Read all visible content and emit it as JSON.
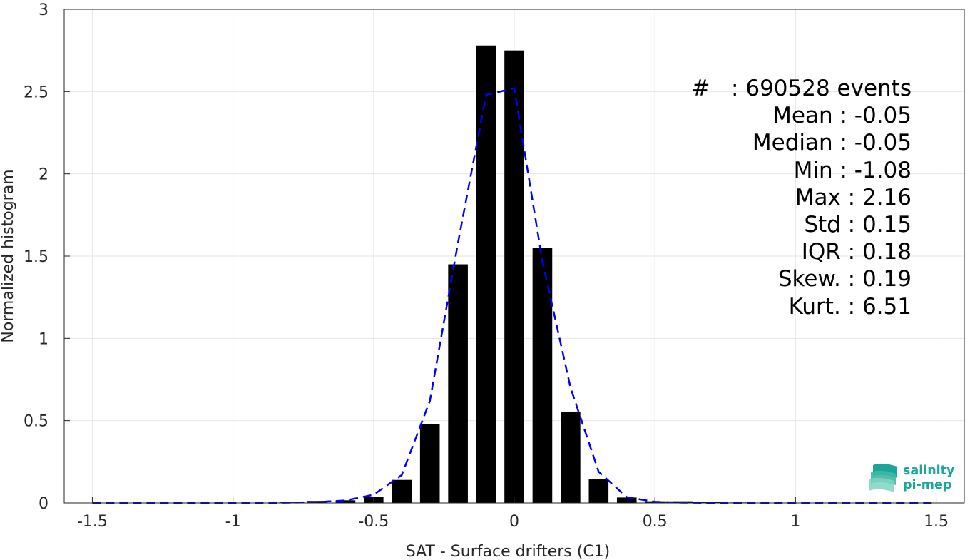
{
  "chart_data": {
    "type": "bar",
    "xlabel": "SAT - Surface drifters (C1)",
    "ylabel": "Normalized histogram",
    "xlim": [
      -1.6,
      1.6
    ],
    "ylim": [
      0,
      3
    ],
    "xticks": [
      -1.5,
      -1,
      -0.5,
      0,
      0.5,
      1,
      1.5
    ],
    "xtick_labels": [
      "-1.5",
      "-1",
      "-0.5",
      "0",
      "0.5",
      "1",
      "1.5"
    ],
    "yticks": [
      0,
      0.5,
      1,
      1.5,
      2,
      2.5,
      3
    ],
    "ytick_labels": [
      "0",
      "0.5",
      "1",
      "1.5",
      "2",
      "2.5",
      "3"
    ],
    "grid": true,
    "bar_color": "#000000",
    "bar_width": 0.07,
    "bars": {
      "x": [
        -1.5,
        -1.4,
        -1.3,
        -1.2,
        -1.1,
        -1.0,
        -0.9,
        -0.8,
        -0.7,
        -0.6,
        -0.5,
        -0.4,
        -0.3,
        -0.2,
        -0.1,
        0.0,
        0.1,
        0.2,
        0.3,
        0.4,
        0.5,
        0.6,
        0.7,
        0.8,
        0.9,
        1.0,
        1.1,
        1.2,
        1.3,
        1.4,
        1.5
      ],
      "values": [
        0.001,
        0.001,
        0.001,
        0.001,
        0.001,
        0.001,
        0.002,
        0.004,
        0.012,
        0.016,
        0.038,
        0.14,
        0.48,
        1.45,
        2.78,
        2.75,
        1.55,
        0.555,
        0.145,
        0.033,
        0.01,
        0.01,
        0.005,
        0.003,
        0.002,
        0.002,
        0.001,
        0.001,
        0.001,
        0.001,
        0.001
      ]
    },
    "fit_line": {
      "color": "#0000ff",
      "style": "dashed",
      "x": [
        -1.5,
        -1.4,
        -1.3,
        -1.2,
        -1.1,
        -1.0,
        -0.9,
        -0.8,
        -0.7,
        -0.6,
        -0.5,
        -0.4,
        -0.3,
        -0.2,
        -0.1,
        0.0,
        0.1,
        0.2,
        0.3,
        0.4,
        0.5,
        0.6,
        0.7,
        0.8,
        0.9,
        1.0,
        1.1,
        1.2,
        1.3,
        1.4,
        1.5
      ],
      "y": [
        0,
        0,
        0,
        0,
        0,
        0,
        0,
        0.002,
        0.005,
        0.015,
        0.05,
        0.17,
        0.62,
        1.58,
        2.48,
        2.52,
        1.47,
        0.7,
        0.19,
        0.035,
        0.007,
        0.002,
        0.001,
        0,
        0,
        0,
        0,
        0,
        0,
        0,
        0
      ]
    }
  },
  "stats": {
    "count": "#   : 690528 events",
    "mean": "Mean : -0.05",
    "median": "Median : -0.05",
    "min": "Min : -1.08",
    "max": "Max : 2.16",
    "std": "Std : 0.15",
    "iqr": "IQR : 0.18",
    "skew": "Skew. : 0.19",
    "kurt": "Kurt. : 6.51"
  },
  "logo": {
    "line1": "salinity",
    "line2": "pi-mep",
    "color": "#1aa79a"
  }
}
